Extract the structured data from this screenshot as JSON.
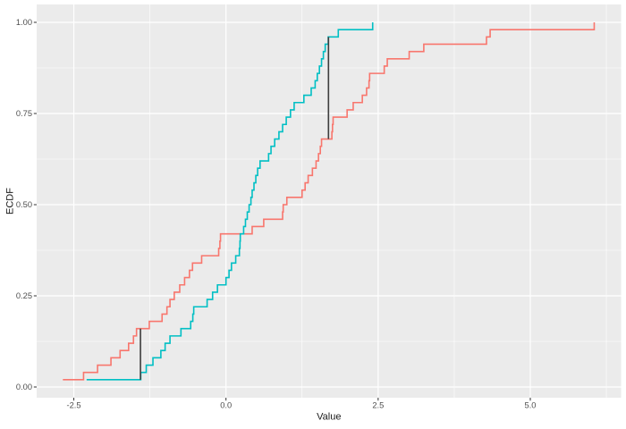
{
  "chart_data": {
    "type": "line",
    "subtype": "ecdf-step",
    "xlabel": "Value",
    "ylabel": "ECDF",
    "grid": true,
    "legend": "none",
    "xlim": [
      -3.11,
      6.49
    ],
    "ylim": [
      -0.03,
      1.05
    ],
    "x_ticks": [
      {
        "v": -2.5,
        "label": "-2.5"
      },
      {
        "v": 0.0,
        "label": "0.0"
      },
      {
        "v": 2.5,
        "label": "2.5"
      },
      {
        "v": 5.0,
        "label": "5.0"
      }
    ],
    "y_ticks": [
      {
        "v": 0.0,
        "label": "0.00"
      },
      {
        "v": 0.25,
        "label": "0.25"
      },
      {
        "v": 0.5,
        "label": "0.50"
      },
      {
        "v": 0.75,
        "label": "0.75"
      },
      {
        "v": 1.0,
        "label": "1.00"
      }
    ],
    "x_minor_ticks": [
      -1.25,
      1.25,
      3.75,
      6.25
    ],
    "y_minor_ticks": [
      0.125,
      0.375,
      0.625,
      0.875
    ],
    "colors": {
      "panel_bg": "#ebebeb",
      "grid": "#ffffff",
      "tick_mark": "#333333",
      "tick_label": "#4d4d4d",
      "axis_title": "#1a1a1a",
      "segment": "#3d3d3d"
    },
    "series": [
      {
        "name": "series-red",
        "color": "#F8766D",
        "note": "ECDF step curve; x[k] is the k-th order statistic, level rises to (k+1)/n",
        "x": [
          -2.68,
          -2.34,
          -2.11,
          -1.89,
          -1.74,
          -1.6,
          -1.52,
          -1.47,
          -1.26,
          -1.05,
          -0.97,
          -0.92,
          -0.85,
          -0.76,
          -0.68,
          -0.6,
          -0.55,
          -0.4,
          -0.12,
          -0.1,
          -0.09,
          0.43,
          0.62,
          0.93,
          0.94,
          1.0,
          1.25,
          1.3,
          1.35,
          1.42,
          1.48,
          1.52,
          1.55,
          1.57,
          1.74,
          1.75,
          1.76,
          1.99,
          2.09,
          2.24,
          2.31,
          2.35,
          2.36,
          2.6,
          2.65,
          3.01,
          3.25,
          4.28,
          4.34,
          6.05
        ]
      },
      {
        "name": "series-cyan",
        "color": "#00BFC4",
        "note": "ECDF step curve; x[k] is the k-th order statistic, level rises to (k+1)/n",
        "x": [
          -2.29,
          -1.4,
          -1.31,
          -1.2,
          -1.07,
          -1.0,
          -0.92,
          -0.74,
          -0.58,
          -0.545,
          -0.53,
          -0.31,
          -0.22,
          -0.14,
          0.0,
          0.05,
          0.09,
          0.16,
          0.22,
          0.23,
          0.235,
          0.29,
          0.32,
          0.35,
          0.38,
          0.41,
          0.43,
          0.46,
          0.49,
          0.52,
          0.56,
          0.7,
          0.74,
          0.8,
          0.87,
          0.93,
          0.99,
          1.06,
          1.12,
          1.28,
          1.4,
          1.465,
          1.5,
          1.535,
          1.57,
          1.6,
          1.63,
          1.68,
          1.845,
          2.41
        ]
      }
    ],
    "ks_segments": [
      {
        "x": -1.405,
        "y_from": 0.02,
        "y_to": 0.16
      },
      {
        "x": 1.684,
        "y_from": 0.68,
        "y_to": 0.96
      }
    ]
  }
}
